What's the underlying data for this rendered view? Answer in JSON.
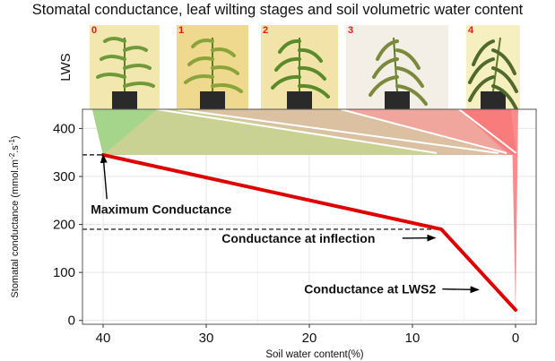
{
  "title": "Stomatal conductance, leaf wilting stages and soil volumetric water content",
  "lws_label": "LWS",
  "stage_numbers": [
    "0",
    "1",
    "2",
    "3",
    "4"
  ],
  "colors": {
    "curve": "#e00000",
    "stage_fill": [
      "#9fd68a",
      "#c6d490",
      "#d8c3a2",
      "#eea8a0",
      "#f87a7a"
    ],
    "panel_border": "#555555",
    "grid": "#e6e6e6",
    "tile_backgrounds": [
      "#f3e7b0",
      "#efd98e",
      "#f2e4a8",
      "#f3eee6",
      "#f6efc0"
    ],
    "plant_green": [
      "#6f9a3a",
      "#8aa33a",
      "#5b8a2a",
      "#7b8a3a",
      "#4f6a2a"
    ]
  },
  "chart_data": {
    "type": "line",
    "title": "Stomatal conductance, leaf wilting stages and soil volumetric water content",
    "xlabel": "Soil water content(%)",
    "ylabel_main": "Stomatal conductance (mmol.m",
    "ylabel_sup1": "-2",
    "ylabel_mid": ".s",
    "ylabel_sup2": "-1",
    "ylabel_end": ")",
    "xlim": [
      42,
      -2
    ],
    "ylim": [
      -8,
      440
    ],
    "x_reversed": true,
    "grid": true,
    "x_ticks": [
      40,
      30,
      20,
      10,
      0
    ],
    "y_ticks": [
      0,
      100,
      200,
      300,
      400
    ],
    "series": [
      {
        "x": [
          40,
          7.2,
          0
        ],
        "y": [
          345,
          190,
          22
        ]
      }
    ],
    "stage_fan": {
      "top_y": 440,
      "curve_top_x": [
        40,
        8,
        2,
        1.2,
        0.3
      ],
      "curve_top_y": [
        345,
        345,
        345,
        345,
        345
      ]
    },
    "reference_lines": [
      {
        "y": 345,
        "from_x": 42,
        "to_x": 40
      },
      {
        "y": 190,
        "from_x": 42,
        "to_x": 7.2
      }
    ],
    "annotations": [
      {
        "text": "Maximum Conductance",
        "label_x": 41.2,
        "label_y": 223,
        "target_x": 40,
        "target_y": 345
      },
      {
        "text": "Conductance at inflection",
        "label_x": 28.5,
        "label_y": 162,
        "target_x": 7.8,
        "target_y": 172
      },
      {
        "text": "Conductance at LWS2",
        "label_x": 20.5,
        "label_y": 56,
        "target_x": 3.6,
        "target_y": 64
      }
    ]
  }
}
